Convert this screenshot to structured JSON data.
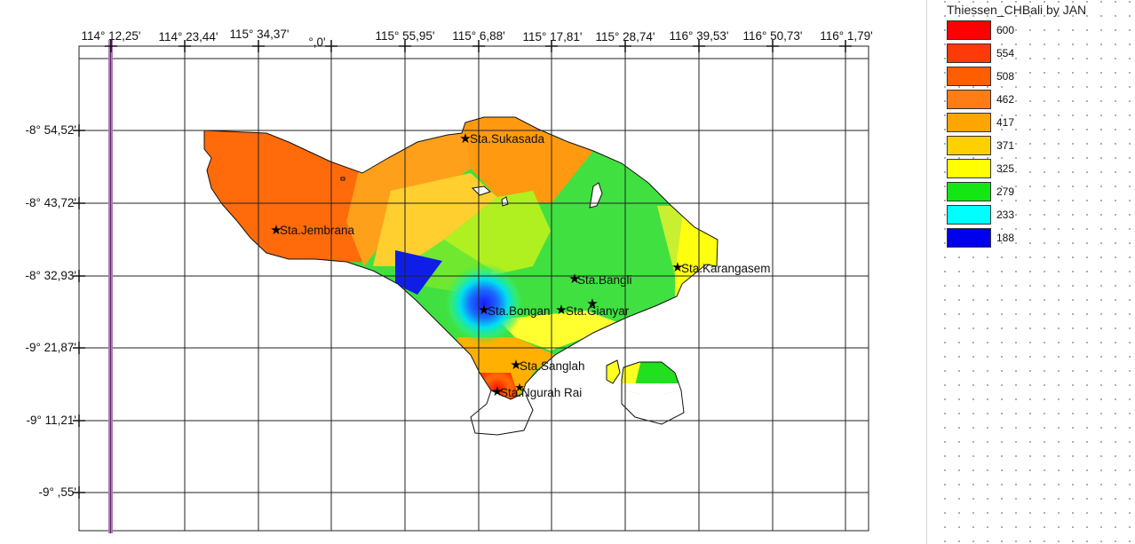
{
  "map": {
    "x_ticks": [
      "114° 12,25'",
      "114° 23,44'",
      "115° 34,37'",
      "°,0'",
      "115° 55,95'",
      "115° 6,88'",
      "115° 17,81'",
      "115° 28,74'",
      "116° 39,53'",
      "116° 50,73'",
      "116° 1,79'"
    ],
    "y_ticks": [
      "-8° 54,52'",
      "-8° 43,72'",
      "-8° 32,93'",
      "-9° 21,87'",
      "-9° 11,21'",
      "-9° ,55'"
    ],
    "stations": [
      {
        "name": "Sta.Sukasada"
      },
      {
        "name": "Sta.Jembrana"
      },
      {
        "name": "Sta.Bangli"
      },
      {
        "name": "Sta.Karangasem"
      },
      {
        "name": "Sta.Bongan"
      },
      {
        "name": "Sta.Gianyar"
      },
      {
        "name": "Sta.Sanglah"
      },
      {
        "name": "Sta.Ngurah Rai"
      }
    ]
  },
  "legend": {
    "title": "Thiessen_CHBali by JAN",
    "items": [
      {
        "label": "600",
        "color": "#ff0000"
      },
      {
        "label": "554",
        "color": "#ff3a0a"
      },
      {
        "label": "508",
        "color": "#ff5e00"
      },
      {
        "label": "462",
        "color": "#ff7d14"
      },
      {
        "label": "417",
        "color": "#ffa500"
      },
      {
        "label": "371",
        "color": "#ffd000"
      },
      {
        "label": "325",
        "color": "#ffff00"
      },
      {
        "label": "279",
        "color": "#14e614"
      },
      {
        "label": "233",
        "color": "#00ffff"
      },
      {
        "label": "188",
        "color": "#0000ee"
      }
    ]
  }
}
